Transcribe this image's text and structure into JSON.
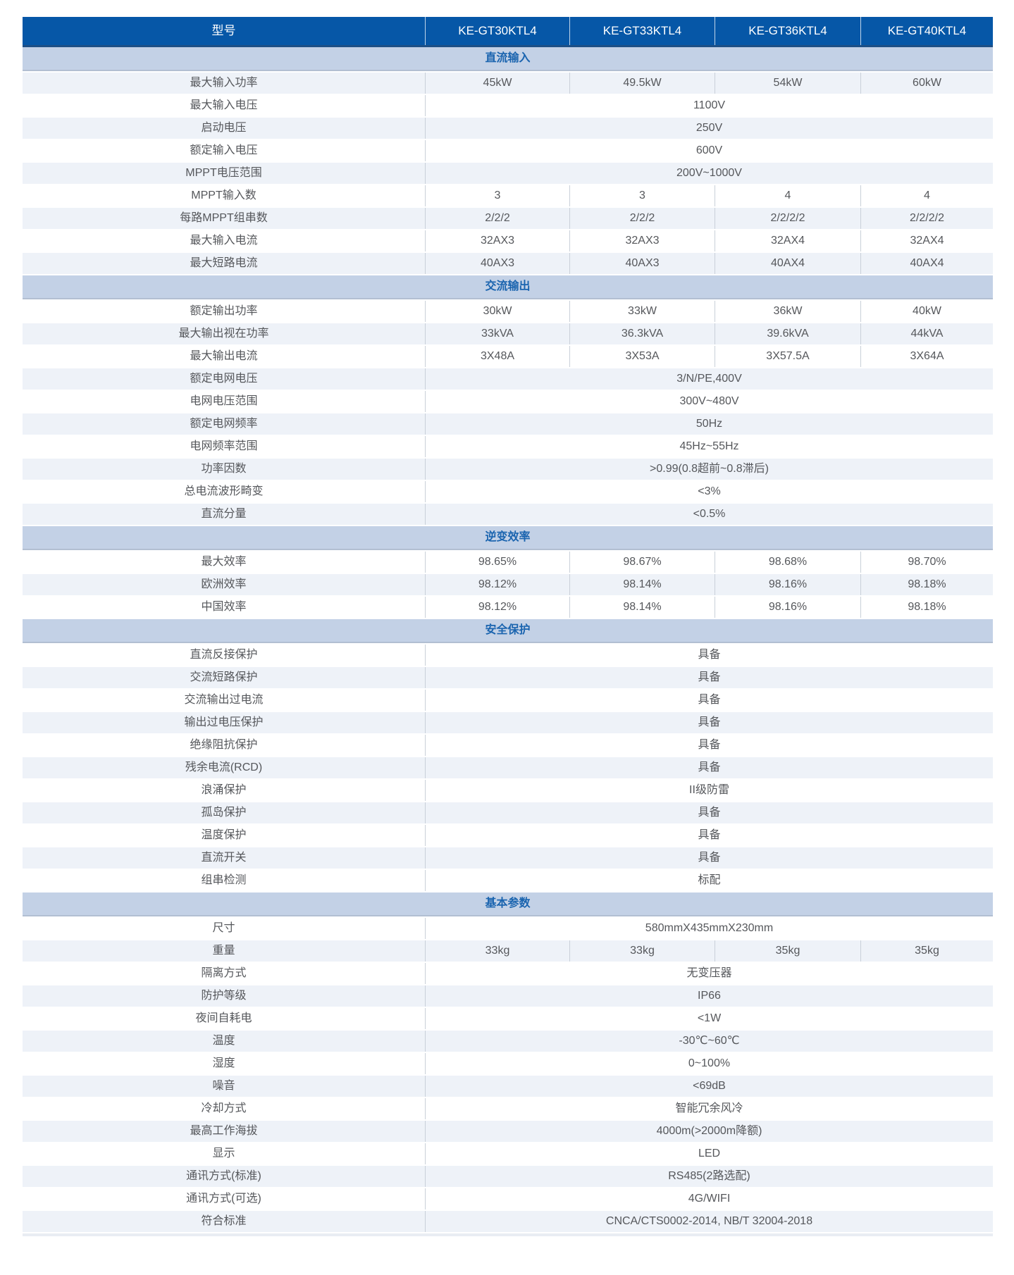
{
  "colors": {
    "header-bg": "#0657a7",
    "header-text": "#ffffff",
    "header-border": "#1d4f86",
    "section-bg": "#c3d1e6",
    "section-text": "#1a64af",
    "section-border": "#b2bfd2",
    "row-bg": "#ffffff",
    "row-alt-bg": "#eef2f8",
    "text": "#55575b",
    "divider": "#c9d0d9"
  },
  "table": {
    "header": {
      "label": "型号",
      "models": [
        "KE-GT30KTL4",
        "KE-GT33KTL4",
        "KE-GT36KTL4",
        "KE-GT40KTL4"
      ]
    },
    "sections": [
      {
        "title": "直流输入",
        "rows": [
          {
            "label": "最大输入功率",
            "values": [
              "45kW",
              "49.5kW",
              "54kW",
              "60kW"
            ]
          },
          {
            "label": "最大输入电压",
            "value": "1100V"
          },
          {
            "label": "启动电压",
            "value": "250V"
          },
          {
            "label": "额定输入电压",
            "value": "600V"
          },
          {
            "label": "MPPT电压范围",
            "value": "200V~1000V"
          },
          {
            "label": "MPPT输入数",
            "values": [
              "3",
              "3",
              "4",
              "4"
            ]
          },
          {
            "label": "每路MPPT组串数",
            "values": [
              "2/2/2",
              "2/2/2",
              "2/2/2/2",
              "2/2/2/2"
            ]
          },
          {
            "label": "最大输入电流",
            "values": [
              "32AX3",
              "32AX3",
              "32AX4",
              "32AX4"
            ]
          },
          {
            "label": "最大短路电流",
            "values": [
              "40AX3",
              "40AX3",
              "40AX4",
              "40AX4"
            ]
          }
        ]
      },
      {
        "title": "交流输出",
        "rows": [
          {
            "label": "额定输出功率",
            "values": [
              "30kW",
              "33kW",
              "36kW",
              "40kW"
            ]
          },
          {
            "label": "最大输出视在功率",
            "values": [
              "33kVA",
              "36.3kVA",
              "39.6kVA",
              "44kVA"
            ]
          },
          {
            "label": "最大输出电流",
            "values": [
              "3X48A",
              "3X53A",
              "3X57.5A",
              "3X64A"
            ]
          },
          {
            "label": "额定电网电压",
            "value": "3/N/PE,400V"
          },
          {
            "label": "电网电压范围",
            "value": "300V~480V"
          },
          {
            "label": "额定电网频率",
            "value": "50Hz"
          },
          {
            "label": "电网频率范围",
            "value": "45Hz~55Hz"
          },
          {
            "label": "功率因数",
            "value": ">0.99(0.8超前~0.8滞后)"
          },
          {
            "label": "总电流波形畸变",
            "value": "<3%"
          },
          {
            "label": "直流分量",
            "value": "<0.5%"
          }
        ]
      },
      {
        "title": "逆变效率",
        "rows": [
          {
            "label": "最大效率",
            "values": [
              "98.65%",
              "98.67%",
              "98.68%",
              "98.70%"
            ]
          },
          {
            "label": "欧洲效率",
            "values": [
              "98.12%",
              "98.14%",
              "98.16%",
              "98.18%"
            ]
          },
          {
            "label": "中国效率",
            "values": [
              "98.12%",
              "98.14%",
              "98.16%",
              "98.18%"
            ]
          }
        ]
      },
      {
        "title": "安全保护",
        "rows": [
          {
            "label": "直流反接保护",
            "value": "具备"
          },
          {
            "label": "交流短路保护",
            "value": "具备"
          },
          {
            "label": "交流输出过电流",
            "value": "具备"
          },
          {
            "label": "输出过电压保护",
            "value": "具备"
          },
          {
            "label": "绝缘阻抗保护",
            "value": "具备"
          },
          {
            "label": "残余电流(RCD)",
            "value": "具备"
          },
          {
            "label": "浪涌保护",
            "value": "II级防雷"
          },
          {
            "label": "孤岛保护",
            "value": "具备"
          },
          {
            "label": "温度保护",
            "value": "具备"
          },
          {
            "label": "直流开关",
            "value": "具备"
          },
          {
            "label": "组串检测",
            "value": "标配"
          }
        ]
      },
      {
        "title": "基本参数",
        "rows": [
          {
            "label": "尺寸",
            "value": "580mmX435mmX230mm"
          },
          {
            "label": "重量",
            "values": [
              "33kg",
              "33kg",
              "35kg",
              "35kg"
            ]
          },
          {
            "label": "隔离方式",
            "value": "无变压器"
          },
          {
            "label": "防护等级",
            "value": "IP66"
          },
          {
            "label": "夜间自耗电",
            "value": "<1W"
          },
          {
            "label": "温度",
            "value": "-30℃~60℃"
          },
          {
            "label": "湿度",
            "value": "0~100%"
          },
          {
            "label": "噪音",
            "value": "<69dB"
          },
          {
            "label": "冷却方式",
            "value": "智能冗余风冷"
          },
          {
            "label": "最高工作海拔",
            "value": "4000m(>2000m降额)"
          },
          {
            "label": "显示",
            "value": "LED"
          },
          {
            "label": "通讯方式(标准)",
            "value": "RS485(2路选配)"
          },
          {
            "label": "通讯方式(可选)",
            "value": "4G/WIFI"
          },
          {
            "label": "符合标准",
            "value": "CNCA/CTS0002-2014, NB/T 32004-2018"
          }
        ]
      }
    ]
  }
}
